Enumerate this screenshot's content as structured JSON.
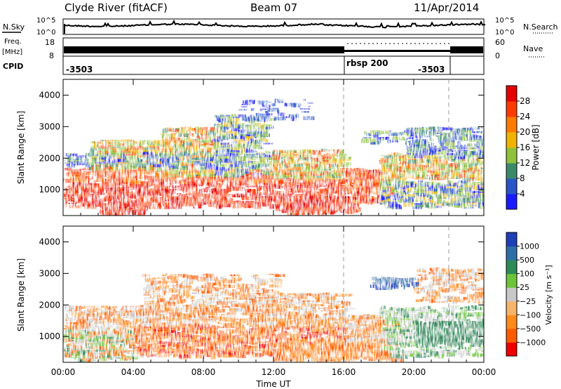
{
  "header": {
    "site": "Clyde River (fitACF)",
    "beam": "Beam 07",
    "date": "11/Apr/2014"
  },
  "top_panels": {
    "nsky_label": "N.Sky",
    "nsky_ticks": [
      "10^5",
      "10^0"
    ],
    "nsearch_label": "N.Search",
    "nsearch_ticks": [
      "10^5",
      "10^0"
    ],
    "freq_label": "Freq.",
    "freq_unit": "[MHz]",
    "freq_ticks": [
      "18",
      "8"
    ],
    "nave_label": "Nave",
    "nave_ticks": [
      "60",
      "0"
    ],
    "cpid_label": "CPID",
    "cpid_segments": [
      {
        "label": "-3503",
        "start_ut": 0,
        "end_ut": 16
      },
      {
        "label": "rbsp 200",
        "start_ut": 16,
        "end_ut": 22
      },
      {
        "label": "-3503",
        "start_ut": 22,
        "end_ut": 24
      }
    ]
  },
  "chart_data": [
    {
      "type": "heatmap",
      "name": "power",
      "ylabel": "Slant Range [km]",
      "xlabel": "Time UT",
      "xlim": [
        0,
        24
      ],
      "ylim": [
        180,
        4500
      ],
      "x_tick_values": [
        0,
        4,
        8,
        12,
        16,
        20,
        24
      ],
      "x_tick_labels": [
        "00:00",
        "04:00",
        "08:00",
        "12:00",
        "16:00",
        "20:00",
        "00:00"
      ],
      "y_tick_values": [
        1000,
        2000,
        3000,
        4000
      ],
      "y_tick_labels": [
        "1000",
        "2000",
        "3000",
        "4000"
      ],
      "colorbar": {
        "label": "Power [dB]",
        "tick_labels": [
          "4",
          "8",
          "12",
          "16",
          "20",
          "24",
          "28"
        ],
        "colors": [
          "#1a1aff",
          "#2a55c8",
          "#3a8a6a",
          "#8fc23a",
          "#f0b400",
          "#ff7a00",
          "#ff3a00",
          "#e40000"
        ]
      },
      "dashed_lines_ut": [
        16,
        22
      ]
    },
    {
      "type": "heatmap",
      "name": "velocity",
      "ylabel": "Slant Range [km]",
      "xlabel": "Time UT",
      "xlim": [
        0,
        24
      ],
      "ylim": [
        180,
        4500
      ],
      "x_tick_values": [
        0,
        4,
        8,
        12,
        16,
        20,
        24
      ],
      "x_tick_labels": [
        "00:00",
        "04:00",
        "08:00",
        "12:00",
        "16:00",
        "20:00",
        "00:00"
      ],
      "y_tick_values": [
        1000,
        2000,
        3000,
        4000
      ],
      "y_tick_labels": [
        "1000",
        "2000",
        "3000",
        "4000"
      ],
      "colorbar": {
        "label": "Velocity [m s⁻¹]",
        "tick_labels": [
          "1000",
          "500",
          "100",
          "25",
          "−25",
          "−100",
          "−500",
          "−1000"
        ],
        "colors": [
          "#1f3fb8",
          "#2f6fa8",
          "#2e8b57",
          "#6cc43a",
          "#c8c8c8",
          "#f5b56a",
          "#ff8a1a",
          "#ff5a00",
          "#ee0000"
        ]
      },
      "dashed_lines_ut": [
        16,
        22
      ]
    }
  ]
}
